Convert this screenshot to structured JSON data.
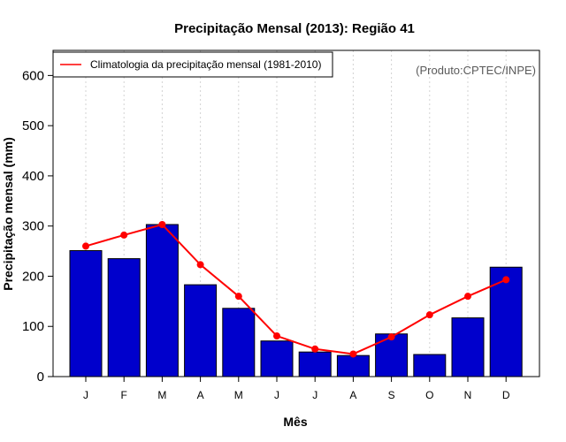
{
  "chart_data": {
    "type": "bar",
    "title": "Precipitação Mensal (2013): Região 41",
    "xlabel": "Mês",
    "ylabel": "Precipitação mensal (mm)",
    "categories": [
      "J",
      "F",
      "M",
      "A",
      "M",
      "J",
      "J",
      "A",
      "S",
      "O",
      "N",
      "D"
    ],
    "ylim": [
      0,
      650
    ],
    "yticks": [
      0,
      100,
      200,
      300,
      400,
      500,
      600
    ],
    "series": [
      {
        "name": "Precipitação mensal 2013",
        "kind": "bar",
        "color": "#0000CC",
        "values": [
          251,
          235,
          303,
          183,
          136,
          71,
          49,
          42,
          85,
          44,
          117,
          218
        ]
      },
      {
        "name": "Climatologia da precipitação mensal (1981-2010)",
        "kind": "line",
        "color": "#FF0000",
        "values": [
          260,
          282,
          303,
          223,
          160,
          81,
          55,
          45,
          79,
          123,
          160,
          193
        ]
      }
    ],
    "legend": {
      "entries": [
        "Climatologia da precipitação mensal (1981-2010)"
      ],
      "position": "top-left"
    },
    "grid": "vertical dotted",
    "annotation": "(Produto:CPTEC/INPE)"
  }
}
